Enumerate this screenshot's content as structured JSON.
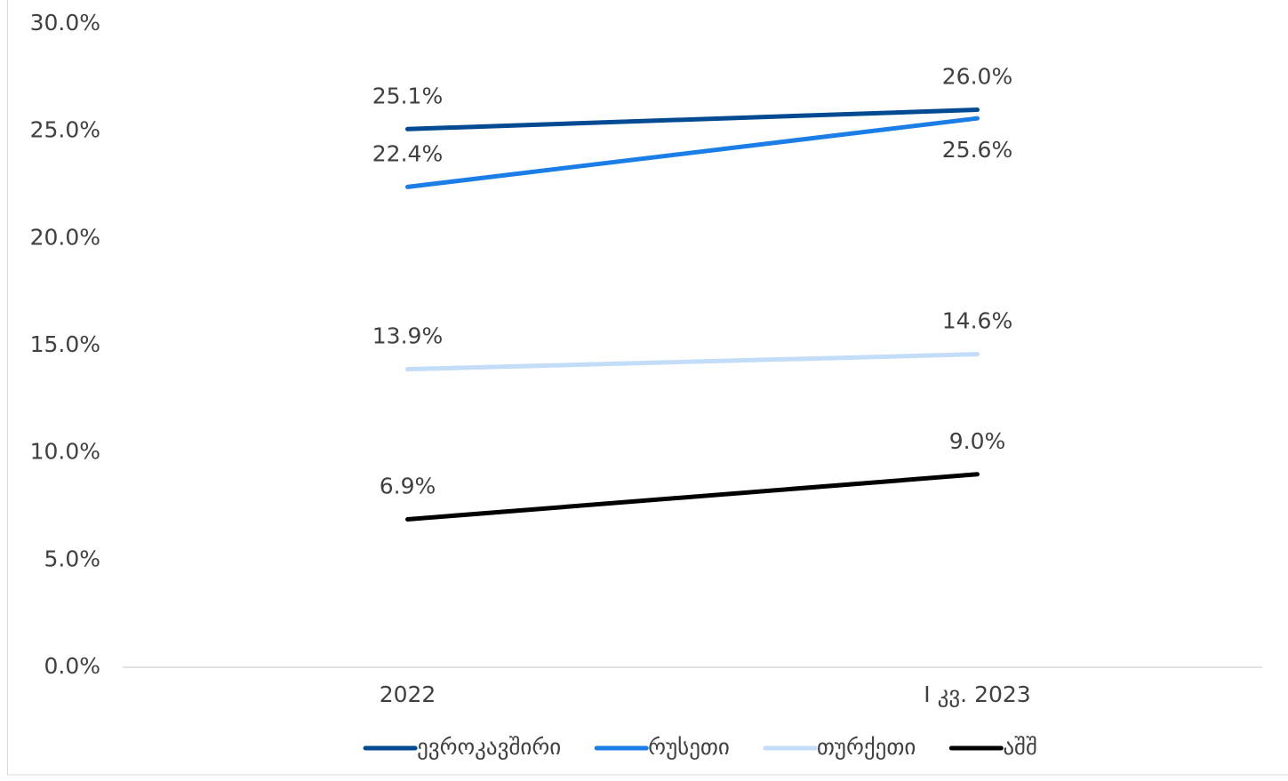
{
  "chart_data": {
    "type": "line",
    "categories": [
      "2022",
      "I კვ. 2023"
    ],
    "series": [
      {
        "name": "ევროკავშირი",
        "color": "#004a91",
        "values": [
          25.1,
          26.0
        ],
        "value_labels": [
          "25.1%",
          "26.0%"
        ]
      },
      {
        "name": "რუსეთი",
        "color": "#1a7ee6",
        "values": [
          22.4,
          25.6
        ],
        "value_labels": [
          "22.4%",
          "25.6%"
        ]
      },
      {
        "name": "თურქეთი",
        "color": "#c3ddf8",
        "values": [
          13.9,
          14.6
        ],
        "value_labels": [
          "13.9%",
          "14.6%"
        ]
      },
      {
        "name": "აშშ",
        "color": "#000000",
        "values": [
          6.9,
          9.0
        ],
        "value_labels": [
          "6.9%",
          "9.0%"
        ]
      }
    ],
    "ylim": [
      0,
      30
    ],
    "yticks": [
      {
        "value": 0,
        "label": "0.0%"
      },
      {
        "value": 5,
        "label": "5.0%"
      },
      {
        "value": 10,
        "label": "10.0%"
      },
      {
        "value": 15,
        "label": "15.0%"
      },
      {
        "value": 20,
        "label": "20.0%"
      },
      {
        "value": 25,
        "label": "25.0%"
      },
      {
        "value": 30,
        "label": "30.0%"
      }
    ],
    "grid": false,
    "legend": "bottom"
  }
}
